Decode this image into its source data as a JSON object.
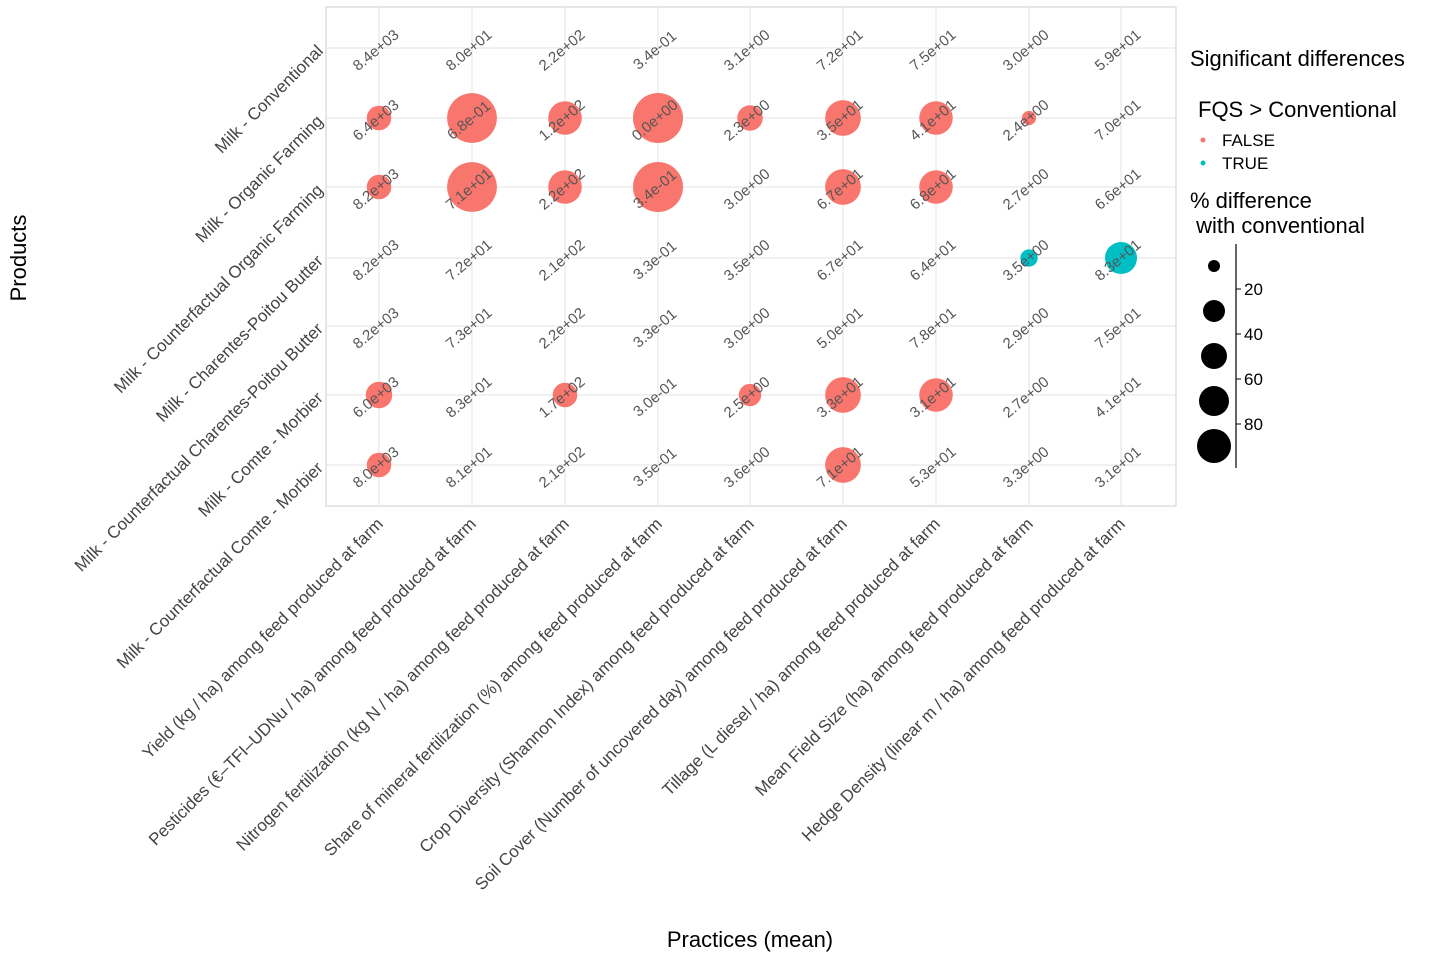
{
  "chart_data": {
    "type": "scatter",
    "title": "",
    "xlabel": "Practices (mean)",
    "ylabel": "Products",
    "grid": true,
    "legend_placement": "right",
    "x_categories": [
      "Yield (kg / ha) among feed produced at farm",
      "Pesticides (€–TFI–UDNu / ha) among feed produced at farm",
      "Nitrogen fertilization (kg N / ha) among feed produced at farm",
      "Share of mineral fertilization (%) among feed produced at farm",
      "Crop Diversity (Shannon Index) among feed produced at farm",
      "Soil Cover (Number of uncovered day) among feed produced at farm",
      "Tillage (L diesel / ha) among feed produced at farm",
      "Mean Field Size (ha) among feed produced at farm",
      "Hedge Density (linear m / ha) among feed produced at farm"
    ],
    "y_categories": [
      "Milk - Conventional",
      "Milk - Organic Farming",
      "Milk - Counterfactual Organic Farming",
      "Milk - Charentes-Poitou Butter",
      "Milk - Counterfactual Charentes-Poitou Butter",
      "Milk - Comte - Morbier",
      "Milk - Counterfactual Comte - Morbier"
    ],
    "labels": [
      [
        "8.4e+03",
        "8.0e+01",
        "2.2e+02",
        "3.4e-01",
        "3.1e+00",
        "7.2e+01",
        "7.5e+01",
        "3.0e+00",
        "5.9e+01"
      ],
      [
        "6.4e+03",
        "6.8e-01",
        "1.2e+02",
        "0.0e+00",
        "2.3e+00",
        "3.5e+01",
        "4.1e+01",
        "2.4e+00",
        "7.0e+01"
      ],
      [
        "8.2e+03",
        "7.1e+01",
        "2.2e+02",
        "3.4e-01",
        "3.0e+00",
        "6.7e+01",
        "6.8e+01",
        "2.7e+00",
        "6.6e+01"
      ],
      [
        "8.2e+03",
        "7.2e+01",
        "2.1e+02",
        "3.3e-01",
        "3.5e+00",
        "6.7e+01",
        "6.4e+01",
        "3.5e+00",
        "8.3e+01"
      ],
      [
        "8.2e+03",
        "7.3e+01",
        "2.2e+02",
        "3.3e-01",
        "3.0e+00",
        "5.0e+01",
        "7.8e+01",
        "2.9e+00",
        "7.5e+01"
      ],
      [
        "6.0e+03",
        "8.3e+01",
        "1.7e+02",
        "3.0e-01",
        "2.5e+00",
        "3.3e+01",
        "3.1e+01",
        "2.7e+00",
        "4.1e+01"
      ],
      [
        "8.0e+03",
        "8.1e+01",
        "2.1e+02",
        "3.5e-01",
        "3.6e+00",
        "7.1e+01",
        "5.3e+01",
        "3.3e+00",
        "3.1e+01"
      ]
    ],
    "points": [
      {
        "x": 0,
        "y": 1,
        "pct": 24,
        "sig": "FALSE"
      },
      {
        "x": 1,
        "y": 1,
        "pct": 99,
        "sig": "FALSE"
      },
      {
        "x": 2,
        "y": 1,
        "pct": 45,
        "sig": "FALSE"
      },
      {
        "x": 3,
        "y": 1,
        "pct": 100,
        "sig": "FALSE"
      },
      {
        "x": 4,
        "y": 1,
        "pct": 26,
        "sig": "FALSE"
      },
      {
        "x": 5,
        "y": 1,
        "pct": 51,
        "sig": "FALSE"
      },
      {
        "x": 6,
        "y": 1,
        "pct": 45,
        "sig": "FALSE"
      },
      {
        "x": 7,
        "y": 1,
        "pct": 8,
        "sig": "FALSE"
      },
      {
        "x": 0,
        "y": 2,
        "pct": 24,
        "sig": "FALSE"
      },
      {
        "x": 1,
        "y": 2,
        "pct": 99,
        "sig": "FALSE"
      },
      {
        "x": 2,
        "y": 2,
        "pct": 45,
        "sig": "FALSE"
      },
      {
        "x": 3,
        "y": 2,
        "pct": 100,
        "sig": "FALSE"
      },
      {
        "x": 5,
        "y": 2,
        "pct": 51,
        "sig": "FALSE"
      },
      {
        "x": 6,
        "y": 2,
        "pct": 45,
        "sig": "FALSE"
      },
      {
        "x": 7,
        "y": 3,
        "pct": 12,
        "sig": "TRUE"
      },
      {
        "x": 8,
        "y": 3,
        "pct": 41,
        "sig": "TRUE"
      },
      {
        "x": 0,
        "y": 5,
        "pct": 28,
        "sig": "FALSE"
      },
      {
        "x": 2,
        "y": 5,
        "pct": 24,
        "sig": "FALSE"
      },
      {
        "x": 4,
        "y": 5,
        "pct": 20,
        "sig": "FALSE"
      },
      {
        "x": 5,
        "y": 5,
        "pct": 51,
        "sig": "FALSE"
      },
      {
        "x": 6,
        "y": 5,
        "pct": 45,
        "sig": "FALSE"
      },
      {
        "x": 0,
        "y": 6,
        "pct": 24,
        "sig": "FALSE"
      },
      {
        "x": 5,
        "y": 6,
        "pct": 51,
        "sig": "FALSE"
      }
    ],
    "legend": {
      "title": "Significant differences",
      "color_title": "FQS > Conventional",
      "color_entries": [
        {
          "label": "FALSE",
          "color": "#F8766D"
        },
        {
          "label": "TRUE",
          "color": "#00BFC4"
        }
      ],
      "size_title_line1": "% difference",
      "size_title_line2": " with conventional",
      "size_breaks": [
        20,
        40,
        60,
        80
      ],
      "size_domain": [
        0,
        100
      ]
    }
  }
}
